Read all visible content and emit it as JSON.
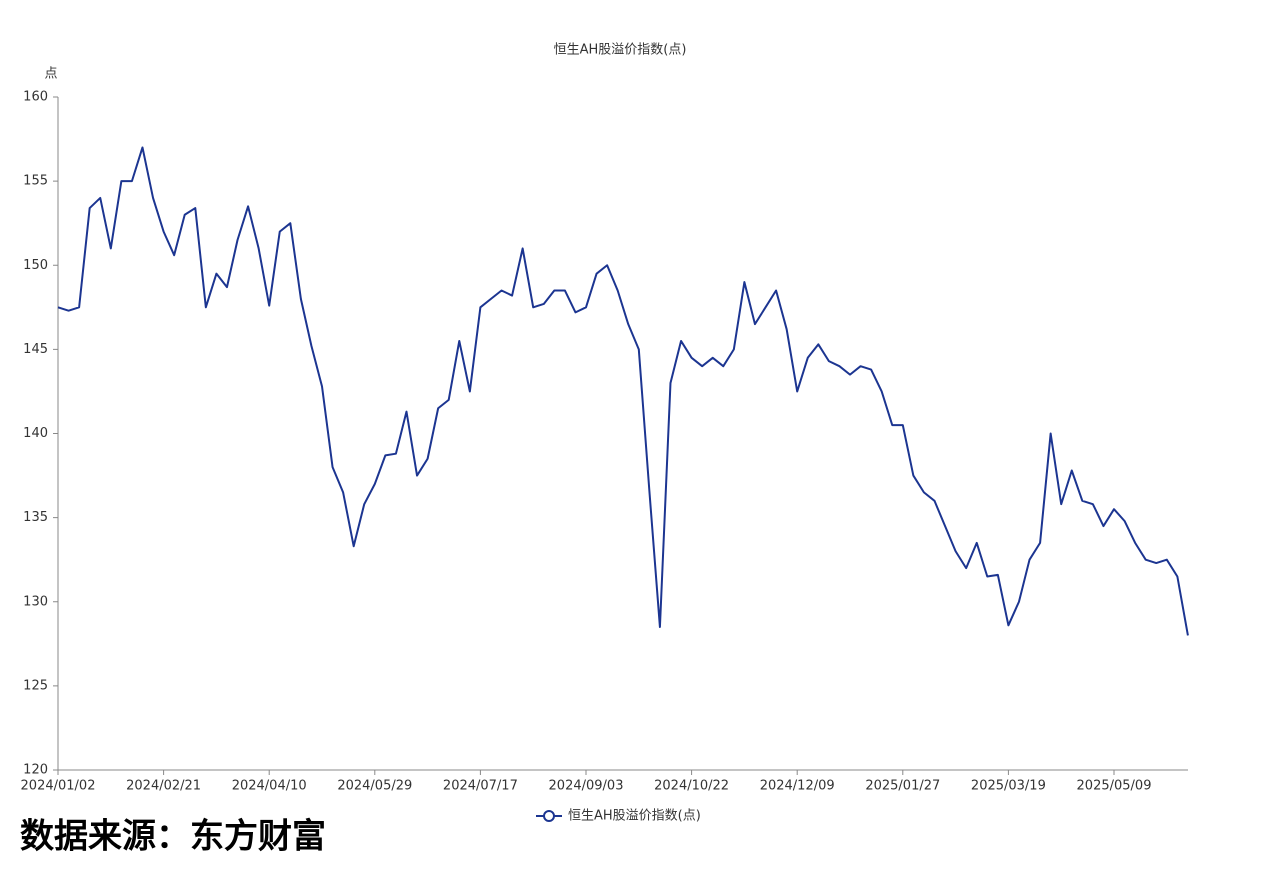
{
  "chart_data": {
    "type": "line",
    "title": "恒生AH股溢价指数(点)",
    "y_label": "点",
    "categories": [
      "2024/01/02",
      null,
      null,
      null,
      null,
      null,
      null,
      null,
      null,
      null,
      "2024/02/21",
      null,
      null,
      null,
      null,
      null,
      null,
      null,
      null,
      null,
      "2024/04/10",
      null,
      null,
      null,
      null,
      null,
      null,
      null,
      null,
      null,
      "2024/05/29",
      null,
      null,
      null,
      null,
      null,
      null,
      null,
      null,
      null,
      "2024/07/17",
      null,
      null,
      null,
      null,
      null,
      null,
      null,
      null,
      null,
      "2024/09/03",
      null,
      null,
      null,
      null,
      null,
      null,
      null,
      null,
      null,
      "2024/10/22",
      null,
      null,
      null,
      null,
      null,
      null,
      null,
      null,
      null,
      "2024/12/09",
      null,
      null,
      null,
      null,
      null,
      null,
      null,
      null,
      null,
      "2025/01/27",
      null,
      null,
      null,
      null,
      null,
      null,
      null,
      null,
      null,
      "2025/03/19",
      null,
      null,
      null,
      null,
      null,
      null,
      null,
      null,
      null,
      "2025/05/09",
      null,
      null,
      null,
      null,
      null,
      null,
      null
    ],
    "series": [
      {
        "name": "恒生AH股溢价指数(点)",
        "color": "#1c3591",
        "values": [
          147.5,
          147.3,
          147.5,
          153.4,
          154,
          151,
          155,
          155,
          157,
          154,
          152,
          150.6,
          153,
          153.4,
          147.5,
          149.5,
          148.7,
          151.5,
          153.5,
          151,
          147.6,
          152,
          152.5,
          148,
          145.2,
          142.8,
          138,
          136.5,
          133.3,
          135.8,
          137,
          138.7,
          138.8,
          141.3,
          137.5,
          138.5,
          141.5,
          142,
          145.5,
          142.5,
          147.5,
          148,
          148.5,
          148.2,
          151,
          147.5,
          147.7,
          148.5,
          148.5,
          147.2,
          147.5,
          149.5,
          150,
          148.5,
          146.5,
          145,
          136.6,
          128.5,
          143,
          145.5,
          144.5,
          144,
          144.5,
          144,
          145,
          149,
          146.5,
          147.5,
          148.5,
          146.2,
          142.5,
          144.5,
          145.3,
          144.3,
          144,
          143.5,
          144,
          143.8,
          142.5,
          140.5,
          140.5,
          137.5,
          136.5,
          136,
          134.5,
          133,
          132,
          133.5,
          131.5,
          131.6,
          128.6,
          130,
          132.5,
          133.5,
          140,
          135.8,
          137.8,
          136,
          135.8,
          134.5,
          135.5,
          134.8,
          133.5,
          132.5,
          132.3,
          132.5,
          131.5,
          128
        ]
      }
    ],
    "ylim": [
      120,
      160
    ],
    "yticks": [
      120,
      125,
      130,
      135,
      140,
      145,
      150,
      155,
      160
    ],
    "legend": "bottom",
    "source": "数据来源：东方财富"
  }
}
